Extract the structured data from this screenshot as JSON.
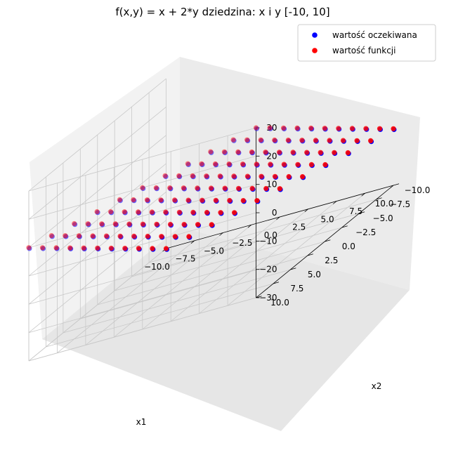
{
  "chart_data": {
    "type": "scatter",
    "projection": "3d",
    "title": "f(x,y) = x + 2*y dziedzina: x i y [-10, 10]",
    "xlabel": "x1",
    "ylabel": "x2",
    "zlabel": "",
    "xlim": [
      -10,
      10
    ],
    "ylim": [
      -10,
      10
    ],
    "zlim": [
      -30,
      30
    ],
    "xticks": [
      -10.0,
      -7.5,
      -5.0,
      -2.5,
      0.0,
      2.5,
      5.0,
      7.5,
      10.0
    ],
    "yticks": [
      -10.0,
      -7.5,
      -5.0,
      -2.5,
      0.0,
      2.5,
      5.0,
      7.5,
      10.0
    ],
    "zticks": [
      -30,
      -20,
      -10,
      0,
      10,
      20,
      30
    ],
    "grid": true,
    "legend_position": "top-right",
    "x_values": [
      -10,
      -8,
      -6,
      -4,
      -2,
      0,
      2,
      4,
      6,
      8,
      10
    ],
    "y_values": [
      -10,
      -8,
      -6,
      -4,
      -2,
      0,
      2,
      4,
      6,
      8,
      10
    ],
    "formula": "x + 2*y",
    "series": [
      {
        "name": "wartość oczekiwana",
        "color": "#0000ff"
      },
      {
        "name": "wartość funkcji",
        "color": "#ff0000"
      }
    ]
  }
}
